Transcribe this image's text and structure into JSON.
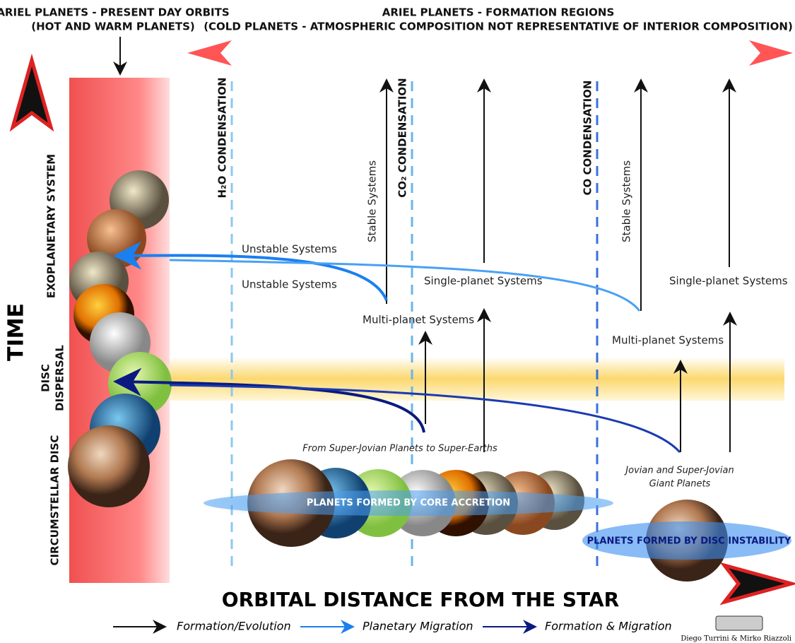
{
  "header": {
    "present_title": [
      "ARIEL PLANETS - PRESENT DAY ORBITS",
      "(HOT AND WARM PLANETS)"
    ],
    "formation_title": [
      "ARIEL PLANETS - FORMATION REGIONS",
      "(COLD PLANETS - ATMOSPHERIC COMPOSITION NOT REPRESENTATIVE OF INTERIOR COMPOSITION)"
    ]
  },
  "axes": {
    "y": "TIME",
    "x": "ORBITAL DISTANCE FROM THE STAR"
  },
  "phases": [
    "EXOPLANETARY SYSTEM",
    [
      "DISC",
      "DISPERSAL"
    ],
    "CIRCUMSTELLAR DISC"
  ],
  "condensation_lines": [
    "H₂O CONDENSATION",
    "CO₂ CONDENSATION",
    "CO CONDENSATION"
  ],
  "labels": {
    "stable": [
      "Stable Systems",
      "Stable Systems"
    ],
    "unstable": [
      "Unstable Systems",
      "Unstable Systems"
    ],
    "single": [
      "Single-planet Systems",
      "Single-planet Systems"
    ],
    "multi": [
      "Multi-planet Systems",
      "Multi-planet Systems"
    ],
    "core_range": "From Super-Jovian Planets to Super-Earths",
    "giant": [
      "Jovian and Super-Jovian",
      "Giant Planets"
    ],
    "core_accretion": "PLANETS FORMED BY CORE ACCRETION",
    "disc_instability": "PLANETS FORMED BY DISC INSTABILITY"
  },
  "legend": [
    "Formation/Evolution",
    "Planetary Migration",
    "Formation & Migration"
  ],
  "credit": "Diego Turrini & Mirko Riazzoli"
}
